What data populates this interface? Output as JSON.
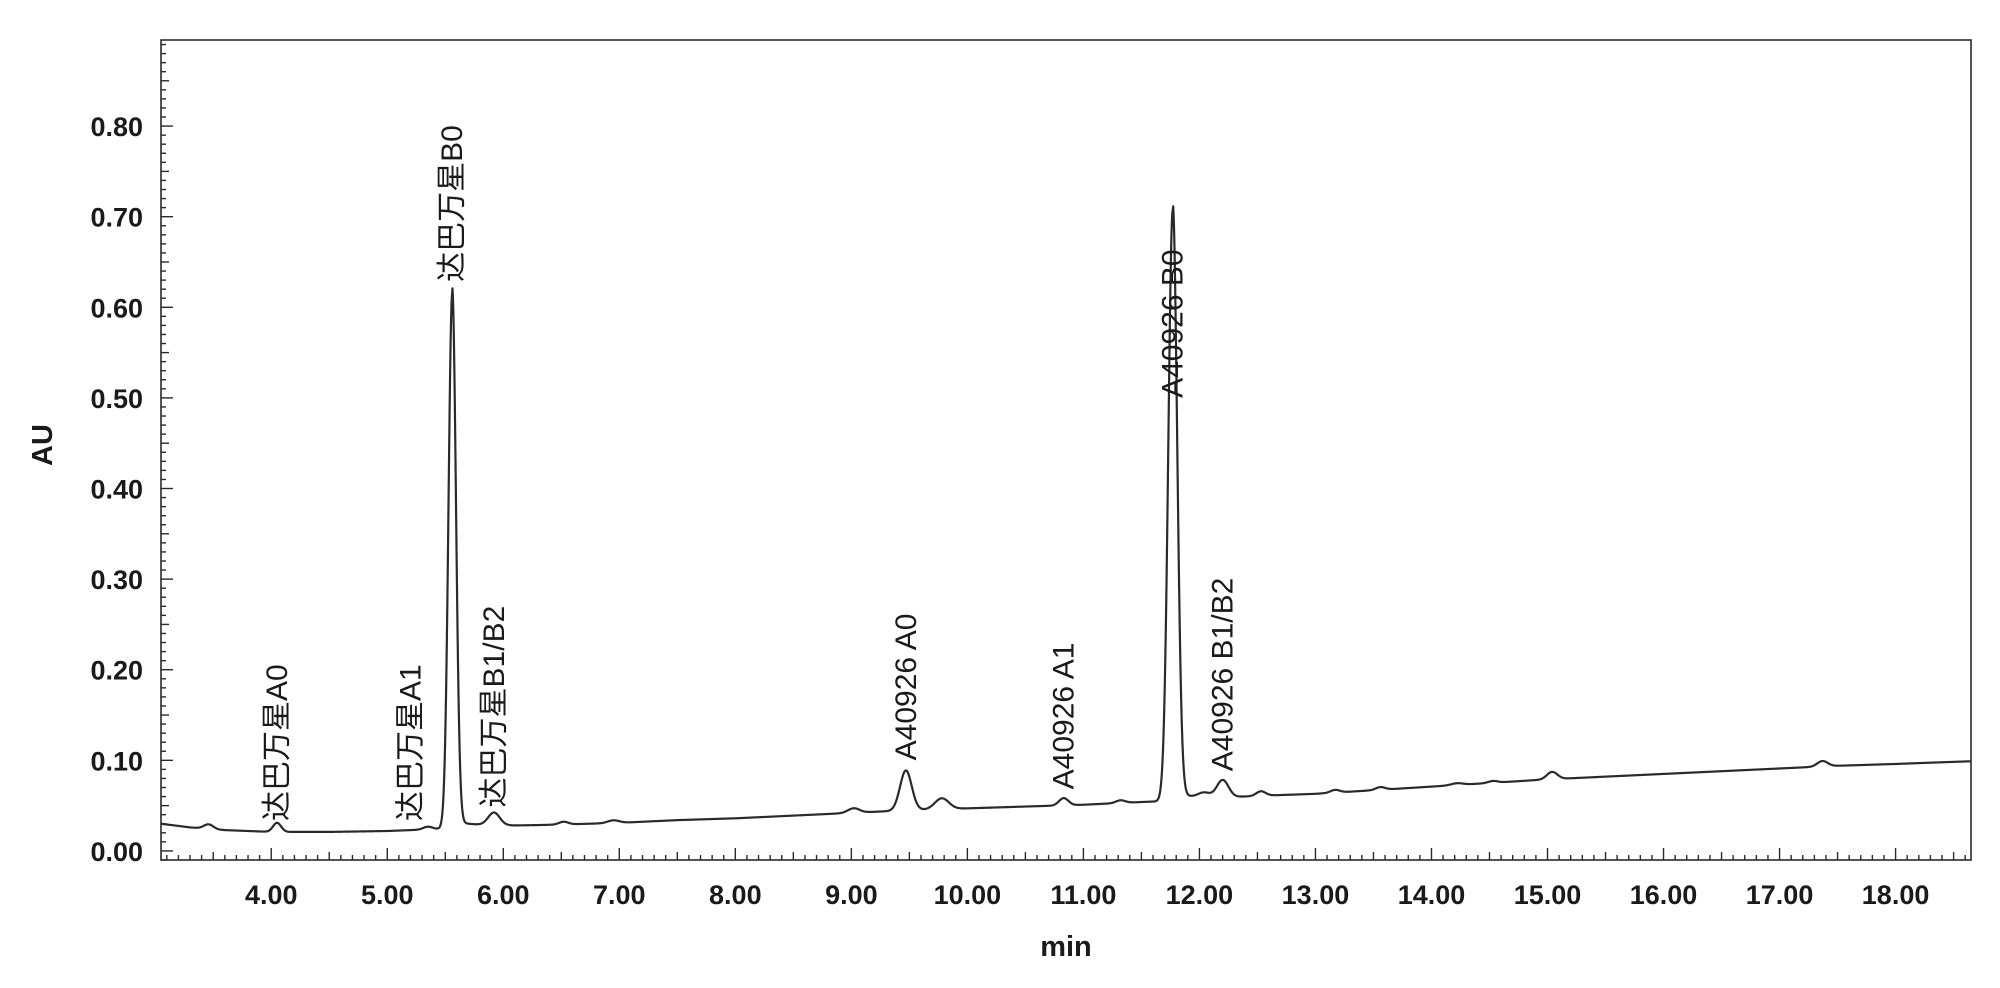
{
  "chart_data": {
    "type": "line",
    "xlabel": "min",
    "ylabel": "AU",
    "xlim": [
      3.05,
      18.65
    ],
    "ylim": [
      -0.01,
      0.895
    ],
    "x_ticks": [
      4.0,
      5.0,
      6.0,
      7.0,
      8.0,
      9.0,
      10.0,
      11.0,
      12.0,
      13.0,
      14.0,
      15.0,
      16.0,
      17.0,
      18.0
    ],
    "x_tick_labels": [
      "4.00",
      "5.00",
      "6.00",
      "7.00",
      "8.00",
      "9.00",
      "10.00",
      "11.00",
      "12.00",
      "13.00",
      "14.00",
      "15.00",
      "16.00",
      "17.00",
      "18.00"
    ],
    "y_ticks": [
      0.0,
      0.1,
      0.2,
      0.3,
      0.4,
      0.5,
      0.6,
      0.7,
      0.8
    ],
    "y_tick_labels": [
      "0.00",
      "0.10",
      "0.20",
      "0.30",
      "0.40",
      "0.50",
      "0.60",
      "0.70",
      "0.80"
    ],
    "grid": false,
    "line_color": "#2a2a2a",
    "baseline": [
      [
        3.05,
        0.03
      ],
      [
        3.3,
        0.026
      ],
      [
        3.6,
        0.023
      ],
      [
        4.0,
        0.021
      ],
      [
        4.5,
        0.021
      ],
      [
        5.0,
        0.022
      ],
      [
        5.4,
        0.024
      ],
      [
        5.7,
        0.026
      ],
      [
        6.0,
        0.027
      ],
      [
        6.5,
        0.029
      ],
      [
        7.0,
        0.031
      ],
      [
        7.5,
        0.034
      ],
      [
        8.0,
        0.036
      ],
      [
        8.5,
        0.039
      ],
      [
        9.0,
        0.042
      ],
      [
        9.5,
        0.045
      ],
      [
        10.0,
        0.047
      ],
      [
        10.5,
        0.049
      ],
      [
        11.0,
        0.051
      ],
      [
        11.5,
        0.054
      ],
      [
        11.9,
        0.056
      ],
      [
        12.2,
        0.058
      ],
      [
        12.6,
        0.061
      ],
      [
        13.0,
        0.063
      ],
      [
        13.5,
        0.067
      ],
      [
        14.0,
        0.071
      ],
      [
        14.5,
        0.075
      ],
      [
        15.0,
        0.079
      ],
      [
        15.5,
        0.082
      ],
      [
        16.0,
        0.085
      ],
      [
        16.5,
        0.088
      ],
      [
        17.0,
        0.091
      ],
      [
        17.5,
        0.094
      ],
      [
        18.0,
        0.096
      ],
      [
        18.65,
        0.099
      ]
    ],
    "peaks": [
      {
        "rt": 3.46,
        "height": 0.005,
        "width": 0.04
      },
      {
        "rt": 4.05,
        "height": 0.01,
        "width": 0.035
      },
      {
        "rt": 5.35,
        "height": 0.003,
        "width": 0.04
      },
      {
        "rt": 5.56,
        "height": 0.59,
        "width": 0.032
      },
      {
        "rt": 5.92,
        "height": 0.014,
        "width": 0.05
      },
      {
        "rt": 6.52,
        "height": 0.003,
        "width": 0.04
      },
      {
        "rt": 6.95,
        "height": 0.003,
        "width": 0.05
      },
      {
        "rt": 9.02,
        "height": 0.005,
        "width": 0.05
      },
      {
        "rt": 9.47,
        "height": 0.044,
        "width": 0.05
      },
      {
        "rt": 9.78,
        "height": 0.012,
        "width": 0.06
      },
      {
        "rt": 10.83,
        "height": 0.008,
        "width": 0.04
      },
      {
        "rt": 11.32,
        "height": 0.003,
        "width": 0.04
      },
      {
        "rt": 11.77,
        "height": 0.652,
        "width": 0.038
      },
      {
        "rt": 12.04,
        "height": 0.005,
        "width": 0.05
      },
      {
        "rt": 12.2,
        "height": 0.019,
        "width": 0.05
      },
      {
        "rt": 12.53,
        "height": 0.005,
        "width": 0.04
      },
      {
        "rt": 13.17,
        "height": 0.003,
        "width": 0.04
      },
      {
        "rt": 13.56,
        "height": 0.003,
        "width": 0.04
      },
      {
        "rt": 14.22,
        "height": 0.002,
        "width": 0.05
      },
      {
        "rt": 14.53,
        "height": 0.002,
        "width": 0.04
      },
      {
        "rt": 15.04,
        "height": 0.008,
        "width": 0.045
      },
      {
        "rt": 17.37,
        "height": 0.006,
        "width": 0.045
      }
    ],
    "annotations": [
      {
        "text": "达巴万星A0",
        "x": 4.05,
        "y": 0.033
      },
      {
        "text": "达巴万星A1",
        "x": 5.2,
        "y": 0.033
      },
      {
        "text": "达巴万星B0",
        "x": 5.56,
        "y": 0.628
      },
      {
        "text": "达巴万星B1/B2",
        "x": 5.92,
        "y": 0.048
      },
      {
        "text": "A40926 A0",
        "x": 9.47,
        "y": 0.1
      },
      {
        "text": "A40926 A1",
        "x": 10.83,
        "y": 0.068
      },
      {
        "text": "A40926 B0",
        "x": 11.77,
        "y": 0.5
      },
      {
        "text": "A40926 B1/B2",
        "x": 12.2,
        "y": 0.088
      }
    ]
  }
}
